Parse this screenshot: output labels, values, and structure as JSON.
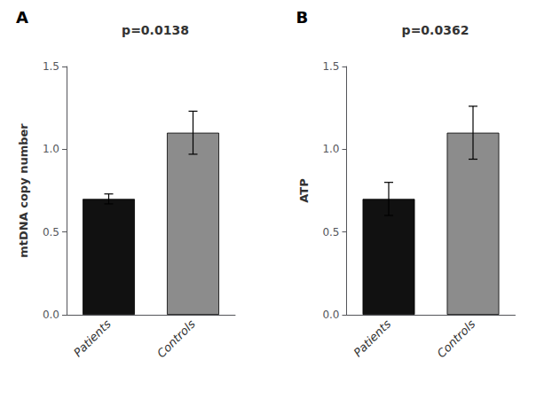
{
  "chart_data": [
    {
      "type": "bar",
      "title": "p=0.0138",
      "annotations": [
        "A"
      ],
      "ylabel": "mtDNA copy number",
      "categories": [
        "Patients",
        "Controls"
      ],
      "values": [
        0.7,
        1.1
      ],
      "errors": [
        0.03,
        0.13
      ],
      "colors": [
        "#111111",
        "#8c8c8c"
      ],
      "ylim": [
        0,
        1.5
      ],
      "yticks": [
        {
          "value": 0.0,
          "label": "0.0"
        },
        0.5,
        {
          "value": 1.0,
          "label": "1.0"
        },
        1.5
      ],
      "grid": false
    },
    {
      "type": "bar",
      "title": "p=0.0362",
      "annotations": [
        "B"
      ],
      "ylabel": "ATP",
      "categories": [
        "Patients",
        "Controls"
      ],
      "values": [
        0.7,
        1.1
      ],
      "errors": [
        0.1,
        0.16
      ],
      "colors": [
        "#111111",
        "#8c8c8c"
      ],
      "ylim": [
        0,
        1.5
      ],
      "yticks": [
        {
          "value": 0.0,
          "label": "0.0"
        },
        0.5,
        {
          "value": 1.0,
          "label": "1.0"
        },
        1.5
      ],
      "grid": false
    }
  ]
}
